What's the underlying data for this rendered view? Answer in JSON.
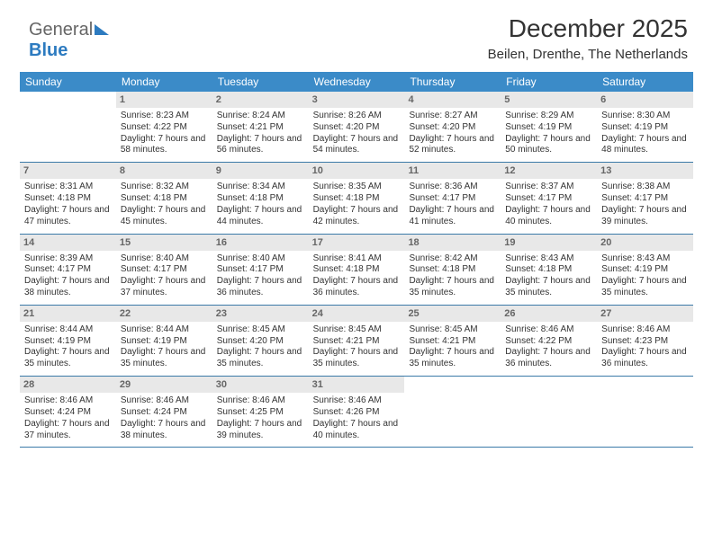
{
  "logo": {
    "part1": "General",
    "part2": "Blue"
  },
  "title": "December 2025",
  "location": "Beilen, Drenthe, The Netherlands",
  "colors": {
    "header_bg": "#3b8bc8",
    "daynum_bg": "#e8e8e8",
    "row_border": "#3b7aa8"
  },
  "weekdays": [
    "Sunday",
    "Monday",
    "Tuesday",
    "Wednesday",
    "Thursday",
    "Friday",
    "Saturday"
  ],
  "first_weekday_offset": 1,
  "days": [
    {
      "n": 1,
      "sr": "8:23 AM",
      "ss": "4:22 PM",
      "dl": "7 hours and 58 minutes."
    },
    {
      "n": 2,
      "sr": "8:24 AM",
      "ss": "4:21 PM",
      "dl": "7 hours and 56 minutes."
    },
    {
      "n": 3,
      "sr": "8:26 AM",
      "ss": "4:20 PM",
      "dl": "7 hours and 54 minutes."
    },
    {
      "n": 4,
      "sr": "8:27 AM",
      "ss": "4:20 PM",
      "dl": "7 hours and 52 minutes."
    },
    {
      "n": 5,
      "sr": "8:29 AM",
      "ss": "4:19 PM",
      "dl": "7 hours and 50 minutes."
    },
    {
      "n": 6,
      "sr": "8:30 AM",
      "ss": "4:19 PM",
      "dl": "7 hours and 48 minutes."
    },
    {
      "n": 7,
      "sr": "8:31 AM",
      "ss": "4:18 PM",
      "dl": "7 hours and 47 minutes."
    },
    {
      "n": 8,
      "sr": "8:32 AM",
      "ss": "4:18 PM",
      "dl": "7 hours and 45 minutes."
    },
    {
      "n": 9,
      "sr": "8:34 AM",
      "ss": "4:18 PM",
      "dl": "7 hours and 44 minutes."
    },
    {
      "n": 10,
      "sr": "8:35 AM",
      "ss": "4:18 PM",
      "dl": "7 hours and 42 minutes."
    },
    {
      "n": 11,
      "sr": "8:36 AM",
      "ss": "4:17 PM",
      "dl": "7 hours and 41 minutes."
    },
    {
      "n": 12,
      "sr": "8:37 AM",
      "ss": "4:17 PM",
      "dl": "7 hours and 40 minutes."
    },
    {
      "n": 13,
      "sr": "8:38 AM",
      "ss": "4:17 PM",
      "dl": "7 hours and 39 minutes."
    },
    {
      "n": 14,
      "sr": "8:39 AM",
      "ss": "4:17 PM",
      "dl": "7 hours and 38 minutes."
    },
    {
      "n": 15,
      "sr": "8:40 AM",
      "ss": "4:17 PM",
      "dl": "7 hours and 37 minutes."
    },
    {
      "n": 16,
      "sr": "8:40 AM",
      "ss": "4:17 PM",
      "dl": "7 hours and 36 minutes."
    },
    {
      "n": 17,
      "sr": "8:41 AM",
      "ss": "4:18 PM",
      "dl": "7 hours and 36 minutes."
    },
    {
      "n": 18,
      "sr": "8:42 AM",
      "ss": "4:18 PM",
      "dl": "7 hours and 35 minutes."
    },
    {
      "n": 19,
      "sr": "8:43 AM",
      "ss": "4:18 PM",
      "dl": "7 hours and 35 minutes."
    },
    {
      "n": 20,
      "sr": "8:43 AM",
      "ss": "4:19 PM",
      "dl": "7 hours and 35 minutes."
    },
    {
      "n": 21,
      "sr": "8:44 AM",
      "ss": "4:19 PM",
      "dl": "7 hours and 35 minutes."
    },
    {
      "n": 22,
      "sr": "8:44 AM",
      "ss": "4:19 PM",
      "dl": "7 hours and 35 minutes."
    },
    {
      "n": 23,
      "sr": "8:45 AM",
      "ss": "4:20 PM",
      "dl": "7 hours and 35 minutes."
    },
    {
      "n": 24,
      "sr": "8:45 AM",
      "ss": "4:21 PM",
      "dl": "7 hours and 35 minutes."
    },
    {
      "n": 25,
      "sr": "8:45 AM",
      "ss": "4:21 PM",
      "dl": "7 hours and 35 minutes."
    },
    {
      "n": 26,
      "sr": "8:46 AM",
      "ss": "4:22 PM",
      "dl": "7 hours and 36 minutes."
    },
    {
      "n": 27,
      "sr": "8:46 AM",
      "ss": "4:23 PM",
      "dl": "7 hours and 36 minutes."
    },
    {
      "n": 28,
      "sr": "8:46 AM",
      "ss": "4:24 PM",
      "dl": "7 hours and 37 minutes."
    },
    {
      "n": 29,
      "sr": "8:46 AM",
      "ss": "4:24 PM",
      "dl": "7 hours and 38 minutes."
    },
    {
      "n": 30,
      "sr": "8:46 AM",
      "ss": "4:25 PM",
      "dl": "7 hours and 39 minutes."
    },
    {
      "n": 31,
      "sr": "8:46 AM",
      "ss": "4:26 PM",
      "dl": "7 hours and 40 minutes."
    }
  ],
  "labels": {
    "sunrise": "Sunrise:",
    "sunset": "Sunset:",
    "daylight": "Daylight:"
  }
}
